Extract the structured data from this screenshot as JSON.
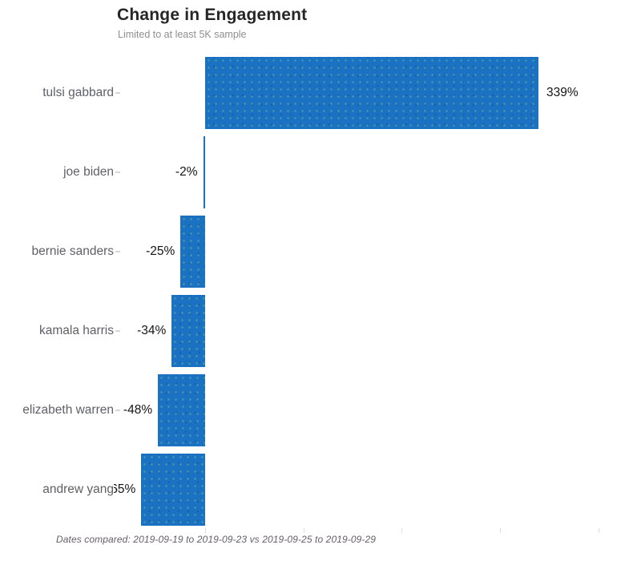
{
  "header": {
    "title": "Change in Engagement",
    "subtitle": "Limited to at least 5K sample"
  },
  "footer": {
    "caption": "Dates compared: 2019-09-19 to 2019-09-23 vs 2019-09-25 to 2019-09-29"
  },
  "colors": {
    "bar": "#1c72c2",
    "category_label": "#5d6066",
    "value_label": "#141414",
    "title": "#262626",
    "subtitle": "#8f8f8f",
    "caption": "#675d68",
    "tick": "#d9dde0"
  },
  "chart_data": {
    "type": "bar",
    "orientation": "horizontal",
    "title": "Change in Engagement",
    "subtitle": "Limited to at least 5K sample",
    "caption": "Dates compared: 2019-09-19 to 2019-09-23 vs 2019-09-25 to 2019-09-29",
    "xlabel": "",
    "ylabel": "",
    "categories": [
      "tulsi gabbard",
      "joe biden",
      "bernie sanders",
      "kamala harris",
      "elizabeth warren",
      "andrew yang"
    ],
    "values": [
      339,
      -2,
      -25,
      -34,
      -48,
      -65
    ],
    "value_labels": [
      "339%",
      "-2%",
      "-25%",
      "-34%",
      "-48%",
      "-65%"
    ],
    "value_unit": "percent_change",
    "xlim": [
      -210,
      440
    ],
    "x_axis_ticks_pct": [
      0,
      100,
      200,
      300,
      400
    ],
    "x_axis_tick_labels": [
      "",
      "",
      "",
      "",
      ""
    ],
    "grid": false,
    "legend": false
  }
}
